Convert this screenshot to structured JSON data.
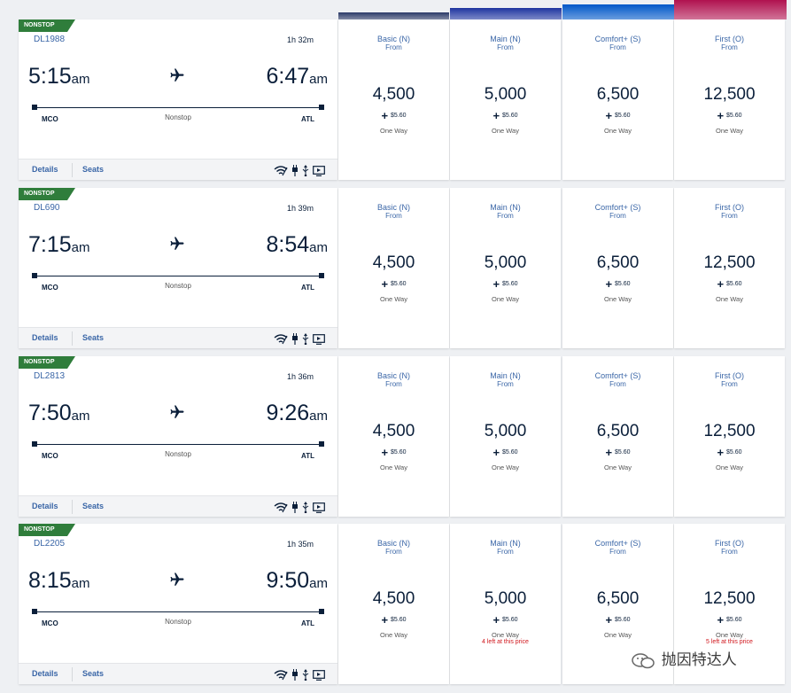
{
  "fare_header_colors": [
    "#2b3a67",
    "#1f35a0",
    "#0057c8",
    "#b0114f"
  ],
  "flights": [
    {
      "badge": "NONSTOP",
      "number": "DL1988",
      "duration": "1h 32m",
      "dep_time": "5:15",
      "dep_ampm": "am",
      "arr_time": "6:47",
      "arr_ampm": "am",
      "origin": "MCO",
      "destination": "ATL",
      "stops": "Nonstop",
      "details_label": "Details",
      "seats_label": "Seats",
      "fares": [
        {
          "name": "Basic (N)",
          "from": "From",
          "miles": "4,500",
          "tax": "$5.60",
          "trip": "One Way",
          "note": ""
        },
        {
          "name": "Main (N)",
          "from": "From",
          "miles": "5,000",
          "tax": "$5.60",
          "trip": "One Way",
          "note": ""
        },
        {
          "name": "Comfort+ (S)",
          "from": "From",
          "miles": "6,500",
          "tax": "$5.60",
          "trip": "One Way",
          "note": ""
        },
        {
          "name": "First (O)",
          "from": "From",
          "miles": "12,500",
          "tax": "$5.60",
          "trip": "One Way",
          "note": ""
        }
      ]
    },
    {
      "badge": "NONSTOP",
      "number": "DL690",
      "duration": "1h 39m",
      "dep_time": "7:15",
      "dep_ampm": "am",
      "arr_time": "8:54",
      "arr_ampm": "am",
      "origin": "MCO",
      "destination": "ATL",
      "stops": "Nonstop",
      "details_label": "Details",
      "seats_label": "Seats",
      "fares": [
        {
          "name": "Basic (N)",
          "from": "From",
          "miles": "4,500",
          "tax": "$5.60",
          "trip": "One Way",
          "note": ""
        },
        {
          "name": "Main (N)",
          "from": "From",
          "miles": "5,000",
          "tax": "$5.60",
          "trip": "One Way",
          "note": ""
        },
        {
          "name": "Comfort+ (S)",
          "from": "From",
          "miles": "6,500",
          "tax": "$5.60",
          "trip": "One Way",
          "note": ""
        },
        {
          "name": "First (O)",
          "from": "From",
          "miles": "12,500",
          "tax": "$5.60",
          "trip": "One Way",
          "note": ""
        }
      ]
    },
    {
      "badge": "NONSTOP",
      "number": "DL2813",
      "duration": "1h 36m",
      "dep_time": "7:50",
      "dep_ampm": "am",
      "arr_time": "9:26",
      "arr_ampm": "am",
      "origin": "MCO",
      "destination": "ATL",
      "stops": "Nonstop",
      "details_label": "Details",
      "seats_label": "Seats",
      "fares": [
        {
          "name": "Basic (N)",
          "from": "From",
          "miles": "4,500",
          "tax": "$5.60",
          "trip": "One Way",
          "note": ""
        },
        {
          "name": "Main (N)",
          "from": "From",
          "miles": "5,000",
          "tax": "$5.60",
          "trip": "One Way",
          "note": ""
        },
        {
          "name": "Comfort+ (S)",
          "from": "From",
          "miles": "6,500",
          "tax": "$5.60",
          "trip": "One Way",
          "note": ""
        },
        {
          "name": "First (O)",
          "from": "From",
          "miles": "12,500",
          "tax": "$5.60",
          "trip": "One Way",
          "note": ""
        }
      ]
    },
    {
      "badge": "NONSTOP",
      "number": "DL2205",
      "duration": "1h 35m",
      "dep_time": "8:15",
      "dep_ampm": "am",
      "arr_time": "9:50",
      "arr_ampm": "am",
      "origin": "MCO",
      "destination": "ATL",
      "stops": "Nonstop",
      "details_label": "Details",
      "seats_label": "Seats",
      "fares": [
        {
          "name": "Basic (N)",
          "from": "From",
          "miles": "4,500",
          "tax": "$5.60",
          "trip": "One Way",
          "note": ""
        },
        {
          "name": "Main (N)",
          "from": "From",
          "miles": "5,000",
          "tax": "$5.60",
          "trip": "One Way",
          "note": "4 left at this price"
        },
        {
          "name": "Comfort+ (S)",
          "from": "From",
          "miles": "6,500",
          "tax": "$5.60",
          "trip": "One Way",
          "note": ""
        },
        {
          "name": "First (O)",
          "from": "From",
          "miles": "12,500",
          "tax": "$5.60",
          "trip": "One Way",
          "note": "5 left at this price"
        }
      ]
    }
  ],
  "amenity_icons": [
    "wifi-icon",
    "power-plug-icon",
    "usb-icon",
    "entertainment-screen-icon"
  ],
  "watermark": "抛因特达人"
}
